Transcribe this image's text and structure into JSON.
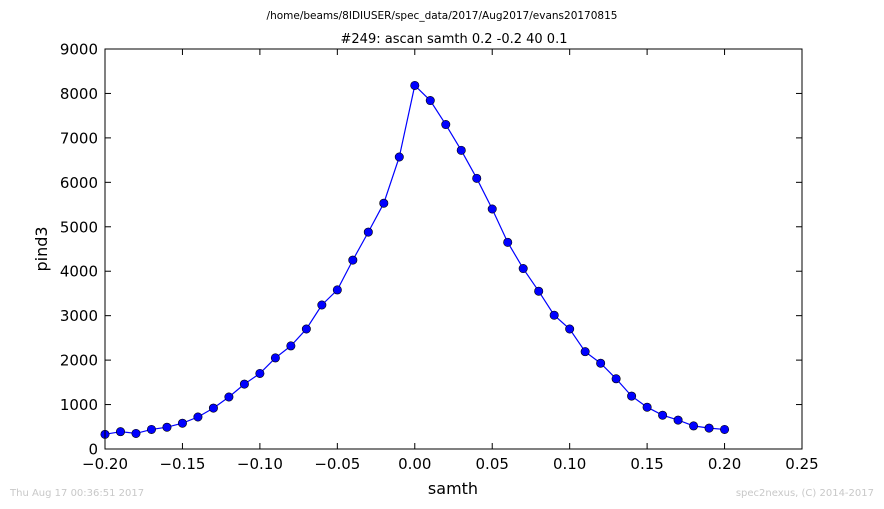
{
  "page": {
    "footer_left": "Thu Aug 17 00:36:51 2017",
    "footer_right": "spec2nexus, (C) 2014-2017"
  },
  "chart_data": {
    "type": "line",
    "suptitle": "/home/beams/8IDIUSER/spec_data/2017/Aug2017/evans20170815",
    "title": "#249: ascan  samth 0.2 -0.2  40 0.1",
    "xlabel": "samth",
    "ylabel": "pind3",
    "xlim": [
      -0.2,
      0.25
    ],
    "ylim": [
      0,
      9000
    ],
    "xticks": [
      -0.2,
      -0.15,
      -0.1,
      -0.05,
      0.0,
      0.05,
      0.1,
      0.15,
      0.2,
      0.25
    ],
    "xtick_labels": [
      "−0.20",
      "−0.15",
      "−0.10",
      "−0.05",
      "0.00",
      "0.05",
      "0.10",
      "0.15",
      "0.20",
      "0.25"
    ],
    "yticks": [
      0,
      1000,
      2000,
      3000,
      4000,
      5000,
      6000,
      7000,
      8000,
      9000
    ],
    "ytick_labels": [
      "0",
      "1000",
      "2000",
      "3000",
      "4000",
      "5000",
      "6000",
      "7000",
      "8000",
      "9000"
    ],
    "grid": false,
    "line_color": "#0000ff",
    "marker_color": "#0000ff",
    "x": [
      -0.2,
      -0.19,
      -0.18,
      -0.17,
      -0.16,
      -0.15,
      -0.14,
      -0.13,
      -0.12,
      -0.11,
      -0.1,
      -0.09,
      -0.08,
      -0.07,
      -0.06,
      -0.05,
      -0.04,
      -0.03,
      -0.02,
      -0.01,
      0.0,
      0.01,
      0.02,
      0.03,
      0.04,
      0.05,
      0.06,
      0.07,
      0.08,
      0.09,
      0.1,
      0.11,
      0.12,
      0.13,
      0.14,
      0.15,
      0.16,
      0.17,
      0.18,
      0.19,
      0.2
    ],
    "y": [
      330,
      390,
      350,
      440,
      490,
      580,
      720,
      920,
      1170,
      1460,
      1700,
      2050,
      2320,
      2700,
      3240,
      3580,
      4250,
      4880,
      5530,
      6570,
      8180,
      7840,
      7300,
      6720,
      6090,
      5400,
      4650,
      4060,
      3550,
      3010,
      2700,
      2190,
      1930,
      1580,
      1190,
      940,
      760,
      650,
      520,
      470,
      440
    ]
  }
}
